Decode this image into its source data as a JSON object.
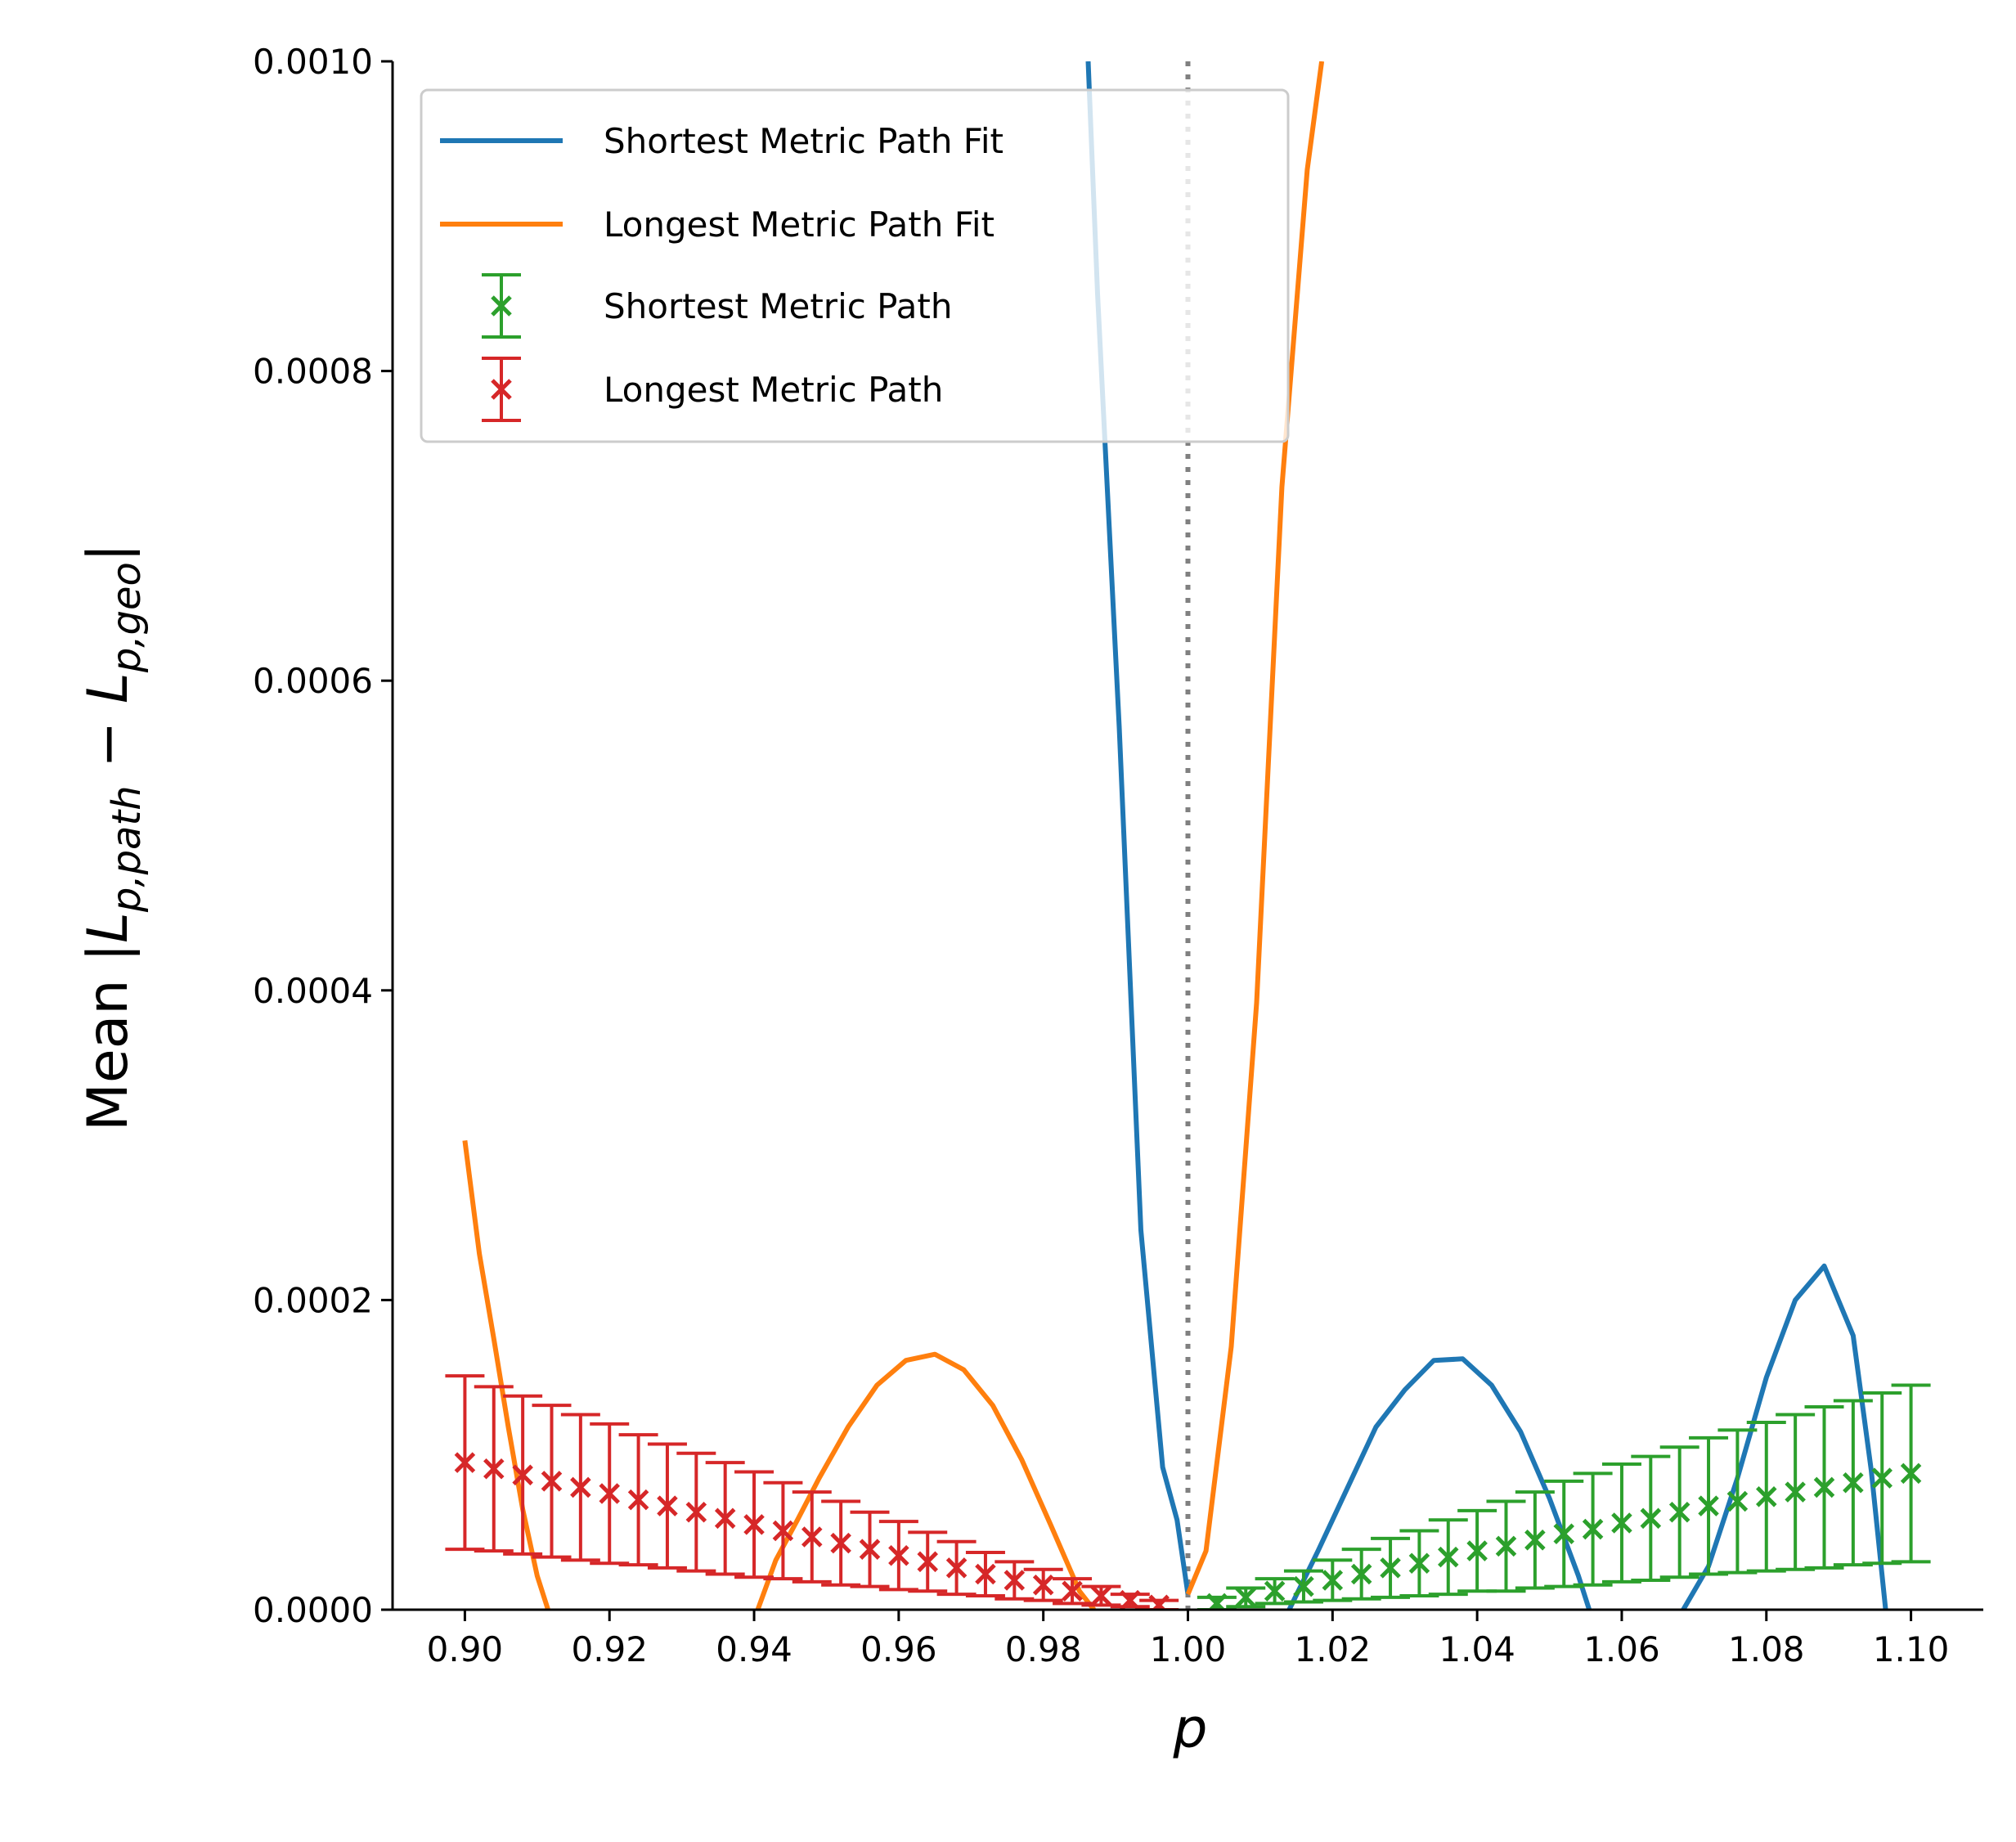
{
  "chart_data": {
    "type": "line",
    "xlabel": "p",
    "ylabel_prefix": "Mean",
    "ylabel_math": "|L_{p,path} − L_{p,geo}|",
    "xlim": [
      0.89,
      1.11
    ],
    "ylim": [
      0.0,
      0.001
    ],
    "xticks": [
      "0.90",
      "0.92",
      "0.94",
      "0.96",
      "0.98",
      "1.00",
      "1.02",
      "1.04",
      "1.06",
      "1.08",
      "1.10"
    ],
    "yticks": [
      "0.0000",
      "0.0002",
      "0.0004",
      "0.0006",
      "0.0008",
      "0.0010"
    ],
    "reference_line": {
      "x": 1.0,
      "style": "dotted",
      "color": "#808080"
    },
    "legend": {
      "position": "top-left"
    },
    "colors": {
      "shortest_fit": "#1f77b4",
      "longest_fit": "#ff7f0e",
      "shortest": "#2ca02c",
      "longest": "#d62728"
    },
    "series": [
      {
        "name": "Shortest Metric Path Fit",
        "kind": "line",
        "x": [
          0.9862,
          0.9875,
          0.9905,
          0.9935,
          0.9965,
          0.9985,
          1.0
        ],
        "y": [
          0.001,
          0.00085,
          0.00057,
          0.000245,
          9.2e-05,
          5.8e-05,
          1e-05
        ]
      },
      {
        "name": "Shortest Metric Path Fit",
        "kind": "line",
        "x": [
          1.014,
          1.018,
          1.022,
          1.026,
          1.03,
          1.034,
          1.038,
          1.042,
          1.046,
          1.05,
          1.054,
          1.0555
        ],
        "y": [
          0.0,
          3.8e-05,
          7.8e-05,
          0.000118,
          0.000142,
          0.000161,
          0.000162,
          0.000145,
          0.000115,
          7.2e-05,
          2.2e-05,
          0.0
        ]
      },
      {
        "name": "Shortest Metric Path Fit",
        "kind": "line",
        "x": [
          1.0685,
          1.072,
          1.076,
          1.08,
          1.084,
          1.088,
          1.092,
          1.0945,
          1.0965
        ],
        "y": [
          0.0,
          2.8e-05,
          8.5e-05,
          0.00015,
          0.0002,
          0.000222,
          0.000177,
          9e-05,
          0.0
        ]
      },
      {
        "name": "Longest Metric Path Fit",
        "kind": "line",
        "x": [
          0.9,
          0.902,
          0.904,
          0.906,
          0.908,
          0.91,
          0.9115
        ],
        "y": [
          0.000303,
          0.00023,
          0.000175,
          0.000118,
          6.5e-05,
          2.2e-05,
          0.0
        ]
      },
      {
        "name": "Longest Metric Path Fit",
        "kind": "line",
        "x": [
          0.9405,
          0.943,
          0.946,
          0.949,
          0.953,
          0.957,
          0.961,
          0.965,
          0.969,
          0.973,
          0.977,
          0.981,
          0.985,
          0.987
        ],
        "y": [
          0.0,
          3.2e-05,
          5.8e-05,
          8.5e-05,
          0.000118,
          0.000145,
          0.000161,
          0.000165,
          0.000155,
          0.000132,
          9.7e-05,
          5.5e-05,
          1.2e-05,
          0.0
        ]
      },
      {
        "name": "Longest Metric Path Fit",
        "kind": "line",
        "x": [
          1.0,
          1.0025,
          1.006,
          1.0095,
          1.013,
          1.0165,
          1.0185
        ],
        "y": [
          1e-05,
          3.8e-05,
          0.00017,
          0.000392,
          0.000725,
          0.00093,
          0.001
        ]
      },
      {
        "name": "Shortest Metric Path",
        "kind": "errorbar",
        "x": [
          1.004,
          1.008,
          1.012,
          1.016,
          1.02,
          1.024,
          1.028,
          1.032,
          1.036,
          1.04,
          1.044,
          1.048,
          1.052,
          1.056,
          1.06,
          1.064,
          1.068,
          1.072,
          1.076,
          1.08,
          1.084,
          1.088,
          1.092,
          1.096,
          1.1
        ],
        "y": [
          4e-06,
          8e-06,
          1.2e-05,
          1.5e-05,
          1.9e-05,
          2.3e-05,
          2.7e-05,
          3e-05,
          3.4e-05,
          3.8e-05,
          4.1e-05,
          4.5e-05,
          4.9e-05,
          5.2e-05,
          5.6e-05,
          5.9e-05,
          6.3e-05,
          6.7e-05,
          7e-05,
          7.3e-05,
          7.6e-05,
          7.9e-05,
          8.2e-05,
          8.5e-05,
          8.8e-05
        ],
        "yerr": [
          4e-06,
          6e-06,
          8e-06,
          1e-05,
          1.3e-05,
          1.6e-05,
          1.9e-05,
          2.1e-05,
          2.4e-05,
          2.6e-05,
          2.9e-05,
          3.1e-05,
          3.4e-05,
          3.6e-05,
          3.8e-05,
          4e-05,
          4.2e-05,
          4.4e-05,
          4.6e-05,
          4.8e-05,
          5e-05,
          5.2e-05,
          5.3e-05,
          5.5e-05,
          5.7e-05
        ]
      },
      {
        "name": "Longest Metric Path",
        "kind": "errorbar",
        "x": [
          0.9,
          0.904,
          0.908,
          0.912,
          0.916,
          0.92,
          0.924,
          0.928,
          0.932,
          0.936,
          0.94,
          0.944,
          0.948,
          0.952,
          0.956,
          0.96,
          0.964,
          0.968,
          0.972,
          0.976,
          0.98,
          0.984,
          0.988,
          0.992,
          0.996
        ],
        "y": [
          9.5e-05,
          9.1e-05,
          8.7e-05,
          8.3e-05,
          7.9e-05,
          7.5e-05,
          7.1e-05,
          6.7e-05,
          6.3e-05,
          5.9e-05,
          5.5e-05,
          5.1e-05,
          4.7e-05,
          4.3e-05,
          3.9e-05,
          3.5e-05,
          3.1e-05,
          2.7e-05,
          2.3e-05,
          1.9e-05,
          1.6e-05,
          1.2e-05,
          9e-06,
          6e-06,
          3e-06
        ],
        "yerr": [
          5.6e-05,
          5.3e-05,
          5.1e-05,
          4.9e-05,
          4.7e-05,
          4.5e-05,
          4.2e-05,
          4e-05,
          3.8e-05,
          3.6e-05,
          3.4e-05,
          3.1e-05,
          2.9e-05,
          2.7e-05,
          2.4e-05,
          2.2e-05,
          1.9e-05,
          1.7e-05,
          1.4e-05,
          1.2e-05,
          1e-05,
          8e-06,
          6e-06,
          4e-06,
          3e-06
        ]
      }
    ]
  },
  "legend_entries": [
    {
      "label": "Shortest Metric Path Fit",
      "marker": "line",
      "color_key": "shortest_fit"
    },
    {
      "label": "Longest Metric Path Fit",
      "marker": "line",
      "color_key": "longest_fit"
    },
    {
      "label": "Shortest Metric Path",
      "marker": "errorbar",
      "color_key": "shortest"
    },
    {
      "label": "Longest Metric Path",
      "marker": "errorbar",
      "color_key": "longest"
    }
  ]
}
